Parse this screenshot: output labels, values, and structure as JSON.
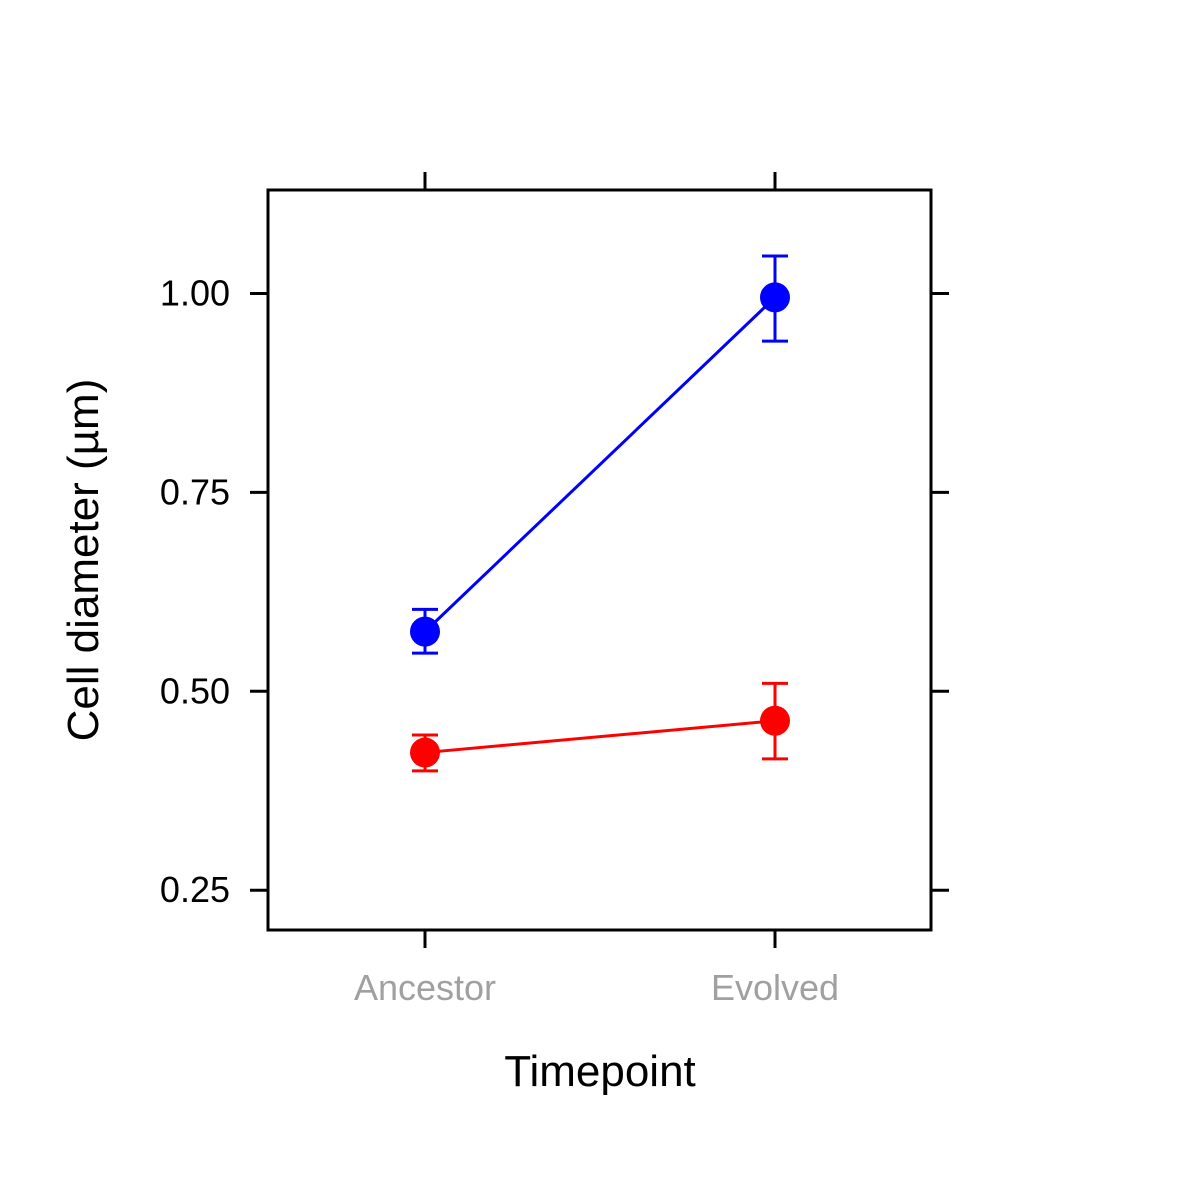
{
  "chart_data": {
    "type": "line",
    "xlabel": "Timepoint",
    "ylabel": "Cell diameter (µm)",
    "categories": [
      "Ancestor",
      "Evolved"
    ],
    "category_label_color": "#a0a0a0",
    "ylim": [
      0.2,
      1.13
    ],
    "yticks": [
      0.25,
      0.5,
      0.75,
      1.0
    ],
    "ytick_labels": [
      "0.25",
      "0.50",
      "0.75",
      "1.00"
    ],
    "grid": false,
    "legend": "none",
    "series": [
      {
        "color": "#0000ff",
        "values": [
          0.575,
          0.995
        ],
        "error_low": [
          0.548,
          0.94
        ],
        "error_high": [
          0.603,
          1.047
        ]
      },
      {
        "color": "#ff0000",
        "values": [
          0.423,
          0.463
        ],
        "error_low": [
          0.4,
          0.415
        ],
        "error_high": [
          0.445,
          0.51
        ]
      }
    ]
  }
}
